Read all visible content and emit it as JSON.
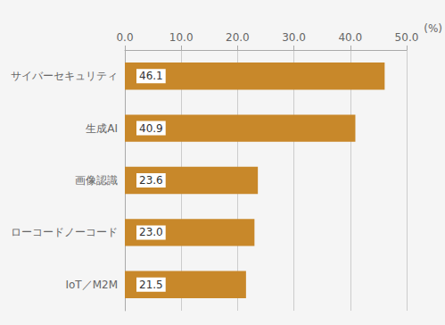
{
  "chart_data": {
    "type": "bar",
    "orientation": "horizontal",
    "categories": [
      "IoT／M2M",
      "ローコードノーコード",
      "画像認識",
      "生成AI",
      "サイバーセキュリティ"
    ],
    "values": [
      21.5,
      23.0,
      23.6,
      40.9,
      46.1
    ],
    "value_labels": [
      "21.5",
      "23.0",
      "23.6",
      "40.9",
      "46.1"
    ],
    "data_labels": true,
    "color": "#C8882A",
    "xlabel": "(%)",
    "xlim": [
      0,
      50
    ],
    "xticks": [
      {
        "value": 0,
        "label": "0.0"
      },
      {
        "value": 10,
        "label": "10.0"
      },
      {
        "value": 20,
        "label": "20.0"
      },
      {
        "value": 30,
        "label": "30.0"
      },
      {
        "value": 40,
        "label": "40.0"
      },
      {
        "value": 50,
        "label": "50.0"
      }
    ],
    "grid": true
  }
}
